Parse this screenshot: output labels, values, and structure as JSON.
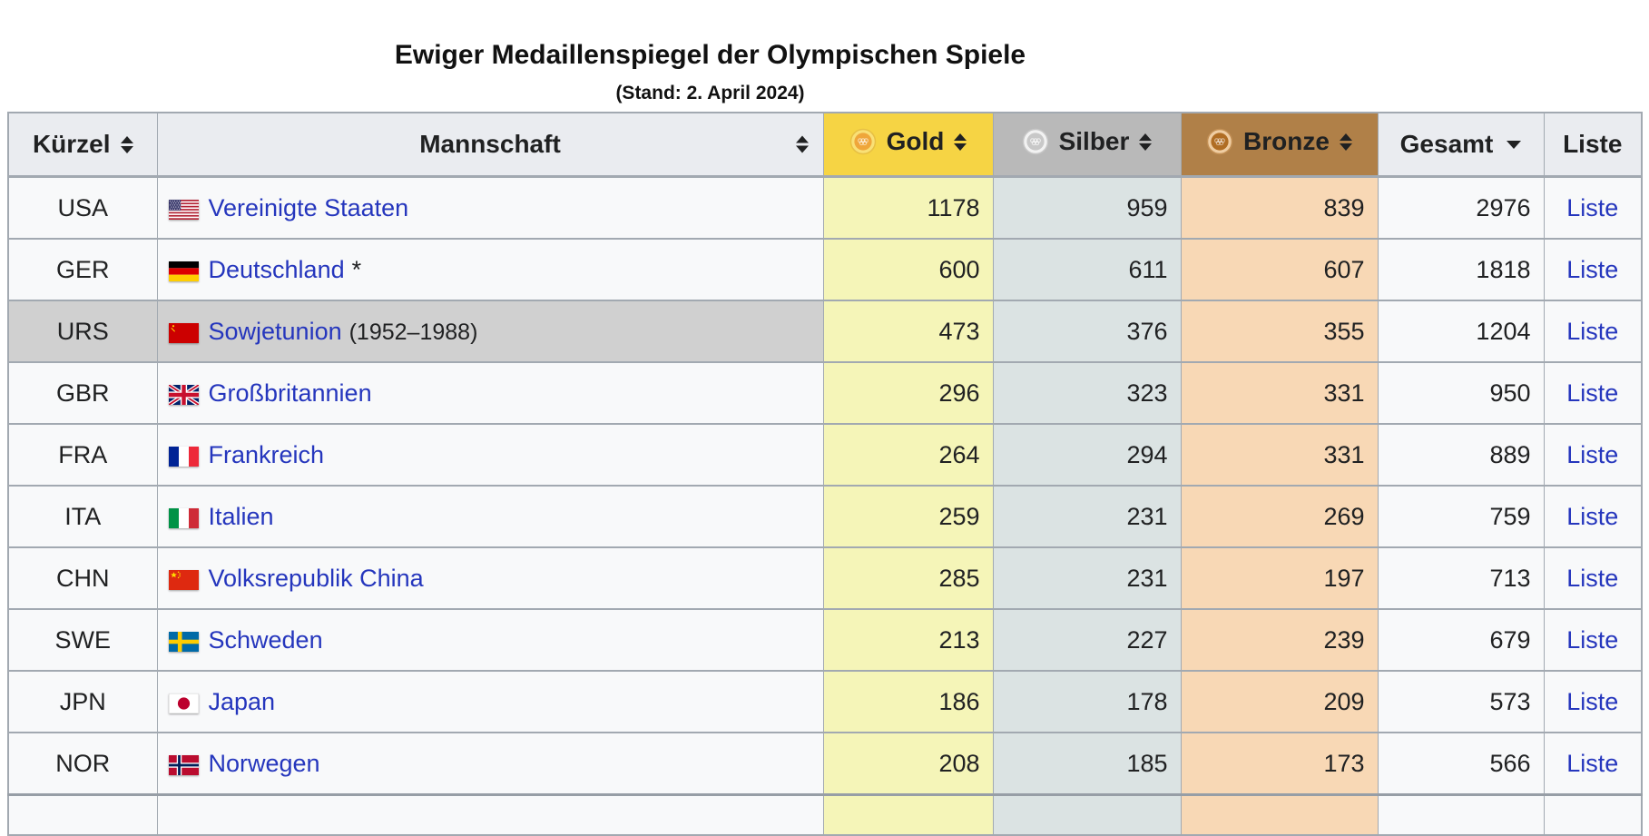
{
  "page": {
    "title": "Ewiger Medaillenspiegel der Olympischen Spiele",
    "subtitle": "(Stand: 2. April 2024)"
  },
  "colors": {
    "header_bg": "#eaecf0",
    "gold_header": "#f6d444",
    "silver_header": "#b9b9b9",
    "bronze_header": "#b08048",
    "gold_cell": "#f5f5b8",
    "silver_cell": "#dbe3e3",
    "bronze_cell": "#f8d8b5",
    "row_bg": "#f8f9fa",
    "highlight_row_bg": "#d0d0d0",
    "border": "#a2a9b1",
    "link": "#2536bd"
  },
  "table": {
    "headers": [
      {
        "label": "Kürzel",
        "sort": "both"
      },
      {
        "label": "Mannschaft",
        "sort": "both"
      },
      {
        "label": "Gold",
        "sort": "both",
        "icon": "gold-medal-icon"
      },
      {
        "label": "Silber",
        "sort": "both",
        "icon": "silver-medal-icon"
      },
      {
        "label": "Bronze",
        "sort": "both",
        "icon": "bronze-medal-icon"
      },
      {
        "label": "Gesamt",
        "sort": "desc"
      },
      {
        "label": "Liste",
        "sort": "none"
      }
    ],
    "rows": [
      {
        "code": "USA",
        "flag": "flag-usa",
        "name": "Vereinigte Staaten",
        "suffix": "",
        "gold": 1178,
        "silver": 959,
        "bronze": 839,
        "total": 2976,
        "list_label": "Liste",
        "highlighted": false
      },
      {
        "code": "GER",
        "flag": "flag-germany",
        "name": "Deutschland",
        "suffix": "*",
        "gold": 600,
        "silver": 611,
        "bronze": 607,
        "total": 1818,
        "list_label": "Liste",
        "highlighted": false
      },
      {
        "code": "URS",
        "flag": "flag-soviet-union",
        "name": "Sowjetunion",
        "suffix": "(1952–1988)",
        "gold": 473,
        "silver": 376,
        "bronze": 355,
        "total": 1204,
        "list_label": "Liste",
        "highlighted": true
      },
      {
        "code": "GBR",
        "flag": "flag-united-kingdom",
        "name": "Großbritannien",
        "suffix": "",
        "gold": 296,
        "silver": 323,
        "bronze": 331,
        "total": 950,
        "list_label": "Liste",
        "highlighted": false
      },
      {
        "code": "FRA",
        "flag": "flag-france",
        "name": "Frankreich",
        "suffix": "",
        "gold": 264,
        "silver": 294,
        "bronze": 331,
        "total": 889,
        "list_label": "Liste",
        "highlighted": false
      },
      {
        "code": "ITA",
        "flag": "flag-italy",
        "name": "Italien",
        "suffix": "",
        "gold": 259,
        "silver": 231,
        "bronze": 269,
        "total": 759,
        "list_label": "Liste",
        "highlighted": false
      },
      {
        "code": "CHN",
        "flag": "flag-china",
        "name": "Volksrepublik China",
        "suffix": "",
        "gold": 285,
        "silver": 231,
        "bronze": 197,
        "total": 713,
        "list_label": "Liste",
        "highlighted": false
      },
      {
        "code": "SWE",
        "flag": "flag-sweden",
        "name": "Schweden",
        "suffix": "",
        "gold": 213,
        "silver": 227,
        "bronze": 239,
        "total": 679,
        "list_label": "Liste",
        "highlighted": false
      },
      {
        "code": "JPN",
        "flag": "flag-japan",
        "name": "Japan",
        "suffix": "",
        "gold": 186,
        "silver": 178,
        "bronze": 209,
        "total": 573,
        "list_label": "Liste",
        "highlighted": false
      },
      {
        "code": "NOR",
        "flag": "flag-norway",
        "name": "Norwegen",
        "suffix": "",
        "gold": 208,
        "silver": 185,
        "bronze": 173,
        "total": 566,
        "list_label": "Liste",
        "highlighted": false
      }
    ]
  }
}
